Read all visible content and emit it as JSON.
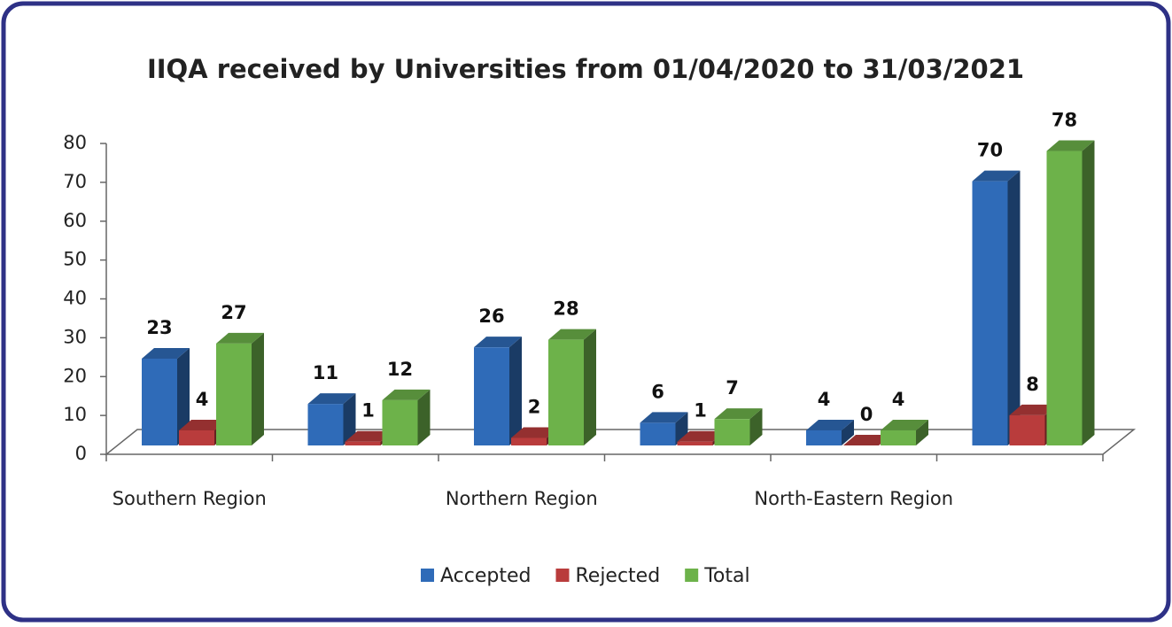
{
  "chart_data": {
    "type": "bar3d",
    "title": "IIQA received by Universities from 01/04/2020 to 31/03/2021",
    "categories": [
      "Southern Region",
      null,
      "Northern Region",
      null,
      "North-Eastern Region",
      null
    ],
    "series": [
      {
        "name": "Accepted",
        "color": "#2f6bb8",
        "values": [
          23,
          11,
          26,
          6,
          4,
          70
        ]
      },
      {
        "name": "Rejected",
        "color": "#b93c3c",
        "values": [
          4,
          1,
          2,
          1,
          0,
          8
        ]
      },
      {
        "name": "Total",
        "color": "#6db24a",
        "values": [
          27,
          12,
          28,
          7,
          4,
          78
        ]
      }
    ],
    "ylim": [
      0,
      80
    ],
    "yticks": [
      0,
      10,
      20,
      30,
      40,
      50,
      60,
      70,
      80
    ],
    "legend": "bottom"
  }
}
